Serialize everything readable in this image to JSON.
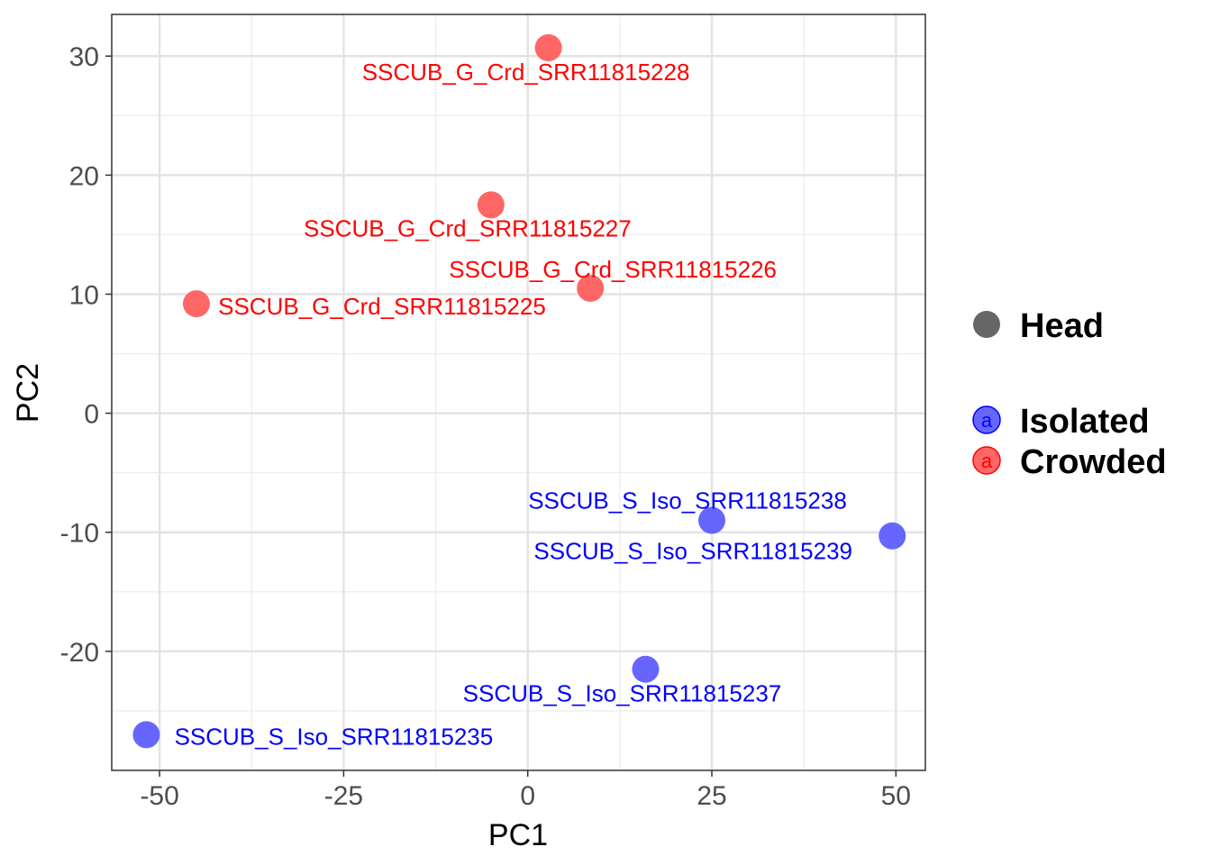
{
  "chart_data": {
    "type": "scatter",
    "xlabel": "PC1",
    "ylabel": "PC2",
    "xlim": [
      -56.5,
      54
    ],
    "ylim": [
      -30,
      33.5
    ],
    "x_ticks": [
      -50,
      -25,
      0,
      25,
      50
    ],
    "x_tick_labels": [
      "-50",
      "-25",
      "0",
      "25",
      "50"
    ],
    "y_ticks": [
      -20,
      -10,
      0,
      10,
      20,
      30
    ],
    "y_tick_labels": [
      "-20",
      "-10",
      "0",
      "10",
      "20",
      "30"
    ],
    "grid": true,
    "legend_position": "right",
    "legend": {
      "shape_title": "Head",
      "groups": [
        {
          "name": "Isolated",
          "color": "#0000ff",
          "key_letter": "a"
        },
        {
          "name": "Crowded",
          "color": "#ff0000",
          "key_letter": "a"
        }
      ]
    },
    "points": [
      {
        "label": "SSCUB_G_Crd_SRR11815228",
        "x": 2.8,
        "y": 30.7,
        "group": "Crowded"
      },
      {
        "label": "SSCUB_G_Crd_SRR11815227",
        "x": -5.0,
        "y": 17.5,
        "group": "Crowded"
      },
      {
        "label": "SSCUB_G_Crd_SRR11815226",
        "x": 8.5,
        "y": 10.5,
        "group": "Crowded"
      },
      {
        "label": "SSCUB_G_Crd_SRR11815225",
        "x": -45.0,
        "y": 9.2,
        "group": "Crowded"
      },
      {
        "label": "SSCUB_S_Iso_SRR11815238",
        "x": 25.0,
        "y": -9.0,
        "group": "Isolated"
      },
      {
        "label": "SSCUB_S_Iso_SRR11815239",
        "x": 49.5,
        "y": -10.3,
        "group": "Isolated"
      },
      {
        "label": "SSCUB_S_Iso_SRR11815237",
        "x": 16.0,
        "y": -21.5,
        "group": "Isolated"
      },
      {
        "label": "SSCUB_S_Iso_SRR11815235",
        "x": -51.8,
        "y": -27.0,
        "group": "Isolated"
      }
    ]
  }
}
